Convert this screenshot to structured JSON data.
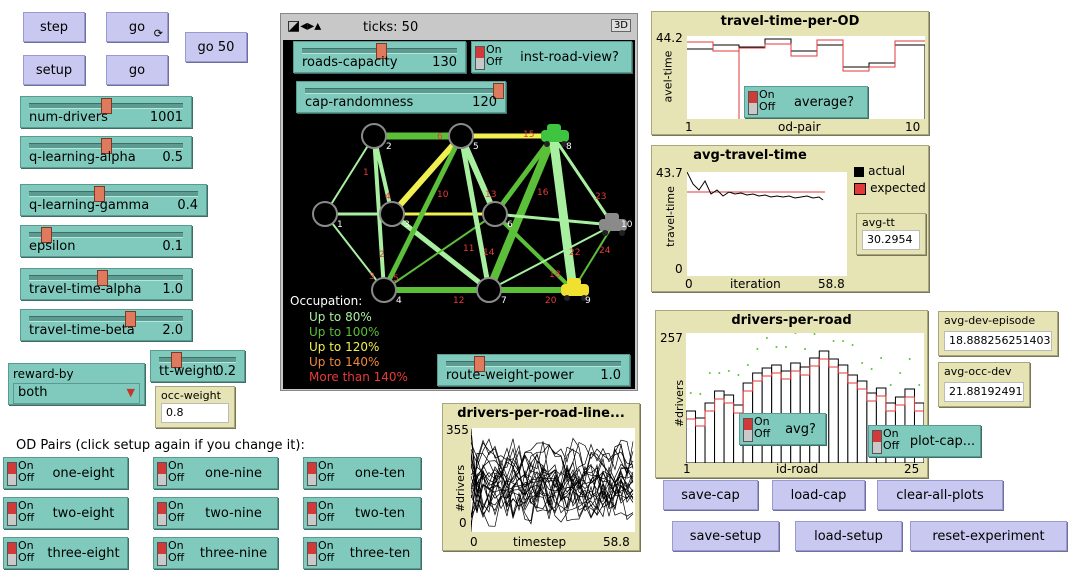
{
  "buttons": {
    "step": "step",
    "go_forever": "go",
    "go50": "go 50",
    "setup": "setup",
    "go": "go",
    "save_cap": "save-cap",
    "load_cap": "load-cap",
    "clear_all_plots": "clear-all-plots",
    "save_setup": "save-setup",
    "load_setup": "load-setup",
    "reset_experiment": "reset-experiment"
  },
  "sliders": [
    {
      "label": "num-drivers",
      "value": "1001",
      "fraction": 0.49
    },
    {
      "label": "q-learning-alpha",
      "value": "0.5",
      "fraction": 0.5
    },
    {
      "label": "q-learning-gamma",
      "value": "0.4",
      "fraction": 0.4
    },
    {
      "label": "epsilon",
      "value": "0.1",
      "fraction": 0.1
    },
    {
      "label": "travel-time-alpha",
      "value": "1.0",
      "fraction": 0.5
    },
    {
      "label": "travel-time-beta",
      "value": "2.0",
      "fraction": 0.67
    }
  ],
  "tt_weight": {
    "label": "tt-weight",
    "value": "0.2",
    "fraction": 0.2
  },
  "occ_weight": {
    "label": "occ-weight",
    "value": "0.8"
  },
  "reward_by": {
    "label": "reward-by",
    "selected": "both"
  },
  "od_header": "OD Pairs (click setup again if you change it):",
  "switch_text": {
    "on": "On",
    "off": "Off"
  },
  "od_switches": [
    "one-eight",
    "one-nine",
    "one-ten",
    "two-eight",
    "two-nine",
    "two-ten",
    "three-eight",
    "three-nine",
    "three-ten"
  ],
  "view": {
    "ticks_label": "ticks: 50",
    "three_d": "3D",
    "roads_capacity": {
      "label": "roads-capacity",
      "value": "130",
      "fraction": 0.5
    },
    "inst_road_view": "inst-road-view?",
    "cap_randomness": {
      "label": "cap-randomness",
      "value": "120",
      "fraction": 1.0
    },
    "route_weight_power": {
      "label": "route-weight-power",
      "value": "1.0",
      "fraction": 0.2
    },
    "legend_title": "Occupation:",
    "legend": [
      {
        "text": "Up to 80%",
        "color": "#a8f0a0"
      },
      {
        "text": "Up to 100%",
        "color": "#5cbf3a"
      },
      {
        "text": "Up to 120%",
        "color": "#f0f050"
      },
      {
        "text": "Up to 140%",
        "color": "#f08a3a"
      },
      {
        "text": "More than 140%",
        "color": "#e83a3a"
      }
    ],
    "nodes": [
      "1",
      "2",
      "3",
      "4",
      "5",
      "6",
      "7",
      "8",
      "9",
      "10"
    ],
    "edge_labels": [
      "1",
      "2",
      "3",
      "4",
      "5",
      "6",
      "7",
      "8",
      "9",
      "10",
      "11",
      "12",
      "13",
      "14",
      "15",
      "16",
      "18",
      "19",
      "20",
      "21",
      "22",
      "23",
      "24",
      "25"
    ]
  },
  "plots": {
    "travel_time_per_od": {
      "title": "travel-time-per-OD",
      "ylabel": "avel-time",
      "xlabel": "od-pair",
      "ymax": "44.2",
      "xmin": "1",
      "xmax": "10",
      "switch_label": "average?"
    },
    "avg_travel_time": {
      "title": "avg-travel-time",
      "ylabel": "travel-time",
      "xlabel": "iteration",
      "ymax": "43.7",
      "ymin": "0",
      "xmin": "0",
      "xmax": "58.8",
      "legend_actual": "actual",
      "legend_expected": "expected"
    },
    "drivers_per_road_line": {
      "title": "drivers-per-road-line...",
      "ylabel": "#drivers",
      "xlabel": "timestep",
      "ymax": "355",
      "ymin": "0",
      "xmin": "0",
      "xmax": "58.8"
    },
    "drivers_per_road": {
      "title": "drivers-per-road",
      "ylabel": "#drivers",
      "xlabel": "id-road",
      "ymax": "257",
      "xmin": "1",
      "xmax": "25",
      "avg_switch": "avg?",
      "plotcap_switch": "plot-cap..."
    }
  },
  "monitors": {
    "avg_tt": {
      "label": "avg-tt",
      "value": "30.2954"
    },
    "avg_dev_episode": {
      "label": "avg-dev-episode",
      "value": "18.8882562514036"
    },
    "avg_occ_dev": {
      "label": "avg-occ-dev",
      "value": "21.881924915"
    }
  },
  "colors": {
    "button": "#c8c8f0",
    "slider": "#7fcabc",
    "monitor": "#e6e3b4",
    "knob": "#e07a5f"
  }
}
